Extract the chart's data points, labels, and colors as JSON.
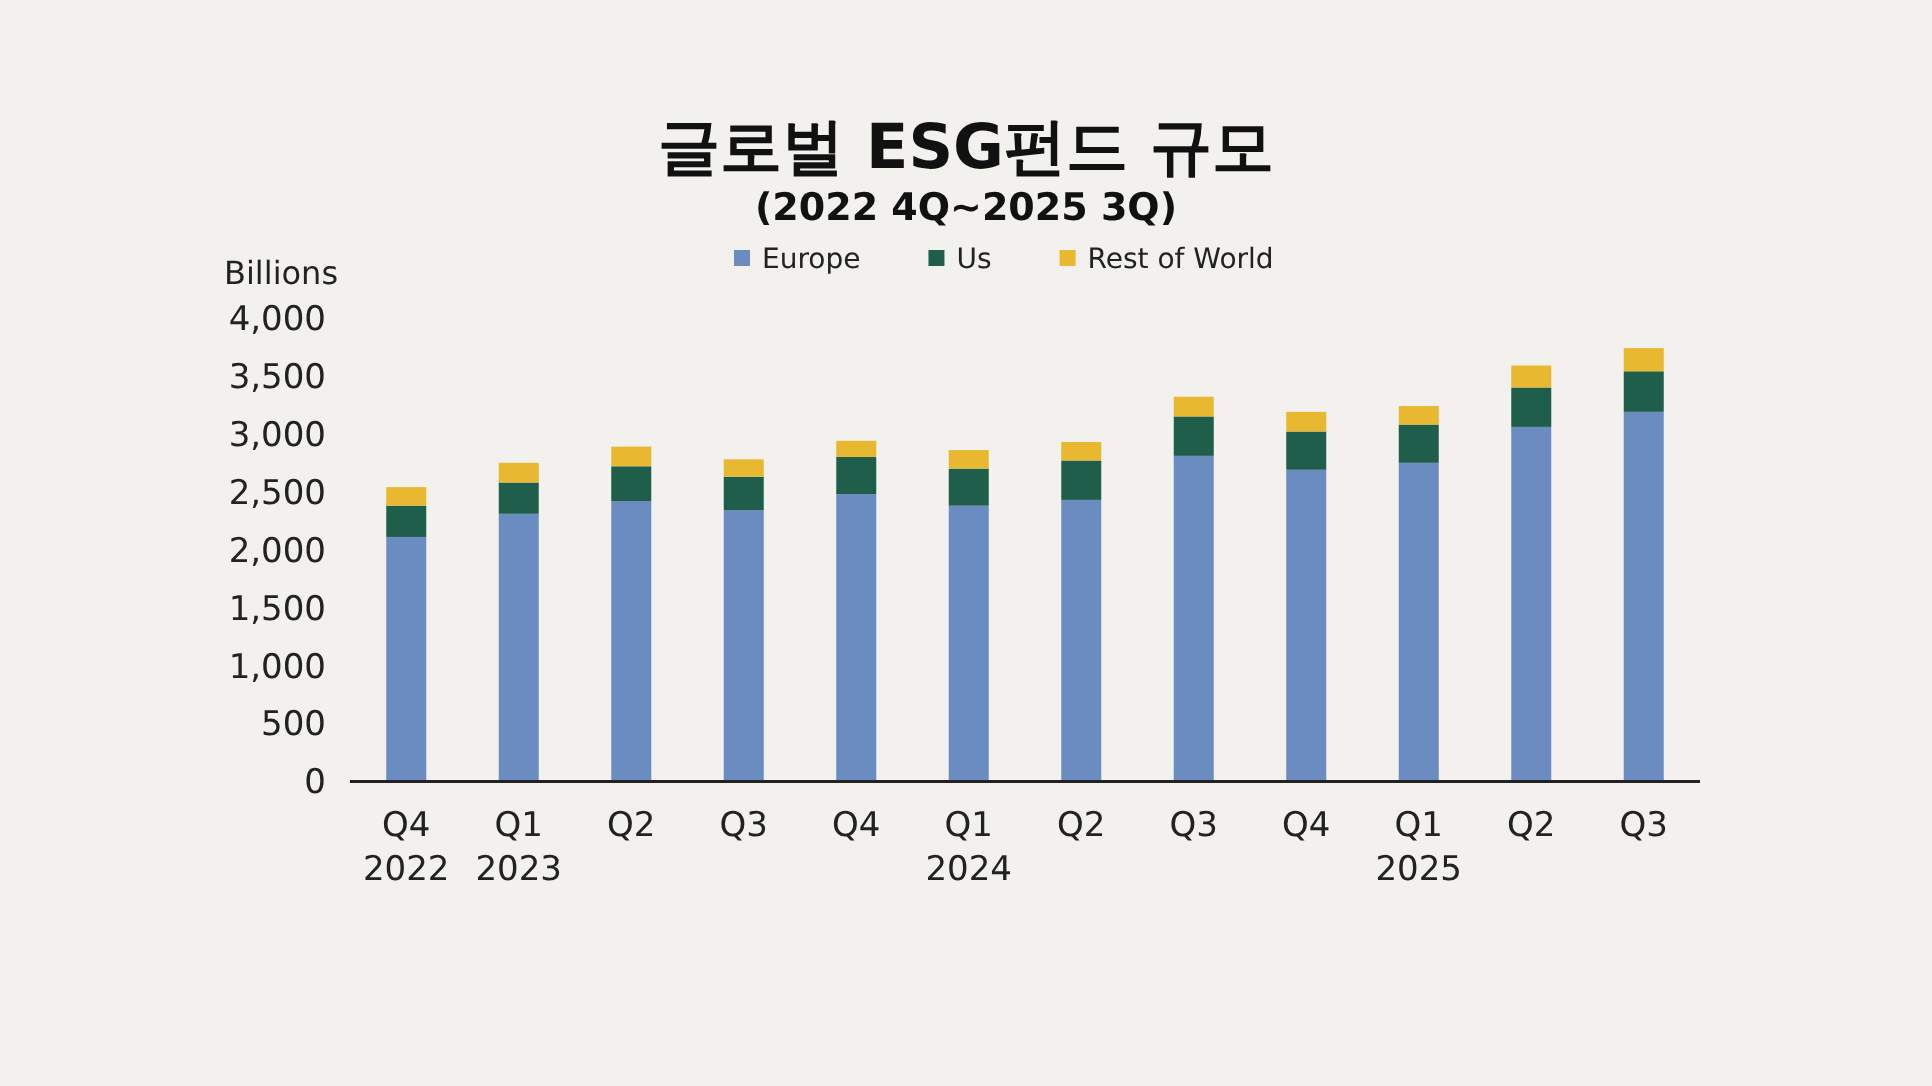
{
  "chart_data": {
    "type": "bar",
    "title": "글로벌 ESG펀드 규모",
    "subtitle": "(2022 4Q~2025 3Q)",
    "ylabel": "Billions",
    "categories": [
      "Q4\n2022",
      "Q1\n2023",
      "Q2",
      "Q3",
      "Q4",
      "Q1\n2024",
      "Q2",
      "Q3",
      "Q4",
      "Q1\n2025",
      "Q2",
      "Q3"
    ],
    "stacked": true,
    "legend": "top",
    "grid": false,
    "ylim": [
      0,
      4000
    ],
    "yticks": [
      {
        "value": 0,
        "label": "0"
      },
      {
        "value": 500,
        "label": "500"
      },
      {
        "value": 1000,
        "label": "1,000"
      },
      {
        "value": 1500,
        "label": "1,500"
      },
      {
        "value": 2000,
        "label": "2,000"
      },
      {
        "value": 2500,
        "label": "2,500"
      },
      {
        "value": 3000,
        "label": "3,000"
      },
      {
        "value": 3500,
        "label": "3,500"
      },
      {
        "value": 4000,
        "label": "4,000"
      }
    ],
    "series": [
      {
        "name": "Europe",
        "color": "#6b8cc0",
        "values": [
          2110,
          2310,
          2420,
          2340,
          2480,
          2380,
          2430,
          2810,
          2690,
          2750,
          3060,
          3190
        ]
      },
      {
        "name": "Us",
        "color": "#1f5e4b",
        "values": [
          270,
          270,
          300,
          290,
          320,
          320,
          340,
          340,
          330,
          330,
          340,
          350
        ]
      },
      {
        "name": "Rest of World",
        "color": "#e8b831",
        "values": [
          160,
          170,
          170,
          150,
          140,
          160,
          160,
          170,
          170,
          160,
          190,
          200
        ]
      }
    ]
  }
}
